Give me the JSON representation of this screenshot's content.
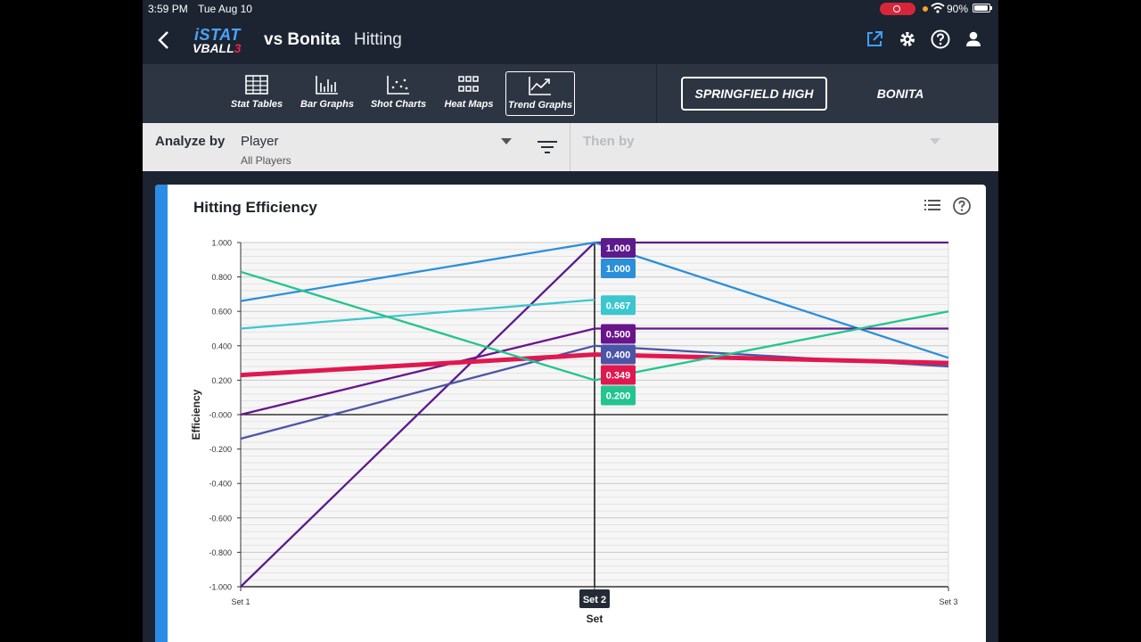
{
  "status": {
    "time": "3:59 PM",
    "date": "Tue Aug 10",
    "battery": "90%"
  },
  "nav": {
    "logo_top": "iSTAT",
    "logo_bottom": "VBALL",
    "logo_num": "3",
    "title": "vs Bonita",
    "subtitle": "Hitting",
    "icons": [
      "share-icon",
      "gear-icon",
      "help-icon",
      "user-icon"
    ]
  },
  "toolbar": {
    "tools": [
      {
        "label": "Stat Tables",
        "icon": "table-icon"
      },
      {
        "label": "Bar Graphs",
        "icon": "bar-chart-icon"
      },
      {
        "label": "Shot Charts",
        "icon": "scatter-icon"
      },
      {
        "label": "Heat Maps",
        "icon": "grid-icon"
      },
      {
        "label": "Trend Graphs",
        "icon": "trend-icon"
      }
    ],
    "active": "Trend Graphs",
    "team_selected": "SPRINGFIELD HIGH",
    "team_other": "BONITA"
  },
  "filter": {
    "analyze_label": "Analyze by",
    "analyze_value": "Player",
    "analyze_sub": "All Players",
    "then_label": "Then by"
  },
  "card": {
    "title": "Hitting Efficiency",
    "icons": [
      "list-icon",
      "help-circle-icon"
    ]
  },
  "chart_data": {
    "type": "line",
    "title": "Hitting Efficiency",
    "xlabel": "Set",
    "ylabel": "Efficiency",
    "categories": [
      "Set 1",
      "Set 2",
      "Set 3"
    ],
    "highlighted_category": "Set 2",
    "ylim": [
      -1.0,
      1.0
    ],
    "yticks": [
      "1.000",
      "0.800",
      "0.600",
      "0.400",
      "0.200",
      "-0.000",
      "-0.200",
      "-0.400",
      "-0.600",
      "-0.800",
      "-1.000"
    ],
    "grid": true,
    "series": [
      {
        "values": [
          -1.0,
          1.0,
          1.0
        ],
        "color": "#5c1a8c",
        "label": "1.000"
      },
      {
        "values": [
          0.66,
          1.0,
          0.33
        ],
        "color": "#2b8fd9",
        "label": "1.000"
      },
      {
        "values": [
          0.5,
          0.667,
          null
        ],
        "color": "#3cc6cf",
        "label": "0.667"
      },
      {
        "values": [
          0.0,
          0.5,
          0.5
        ],
        "color": "#6a148c",
        "label": "0.500"
      },
      {
        "values": [
          -0.14,
          0.4,
          0.28
        ],
        "color": "#4b55a8",
        "label": "0.400"
      },
      {
        "values": [
          0.23,
          0.349,
          0.3
        ],
        "color": "#e0184f",
        "label": "0.349",
        "bold": true
      },
      {
        "values": [
          0.83,
          0.2,
          0.6
        ],
        "color": "#23c48f",
        "label": "0.200"
      }
    ]
  }
}
